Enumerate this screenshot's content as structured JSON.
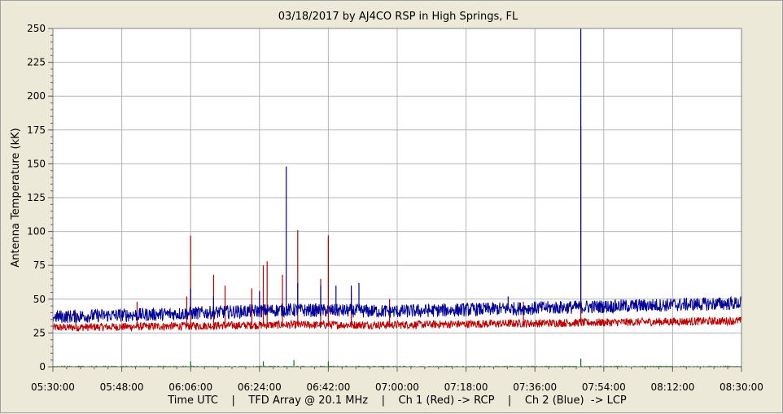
{
  "chart_data": {
    "type": "line",
    "title": "03/18/2017  by  AJ4CO RSP  in  High Springs, FL",
    "xlabel": "Time UTC    |    TFD Array @ 20.1 MHz    |    Ch 1 (Red) -> RCP    |    Ch 2 (Blue)  -> LCP",
    "ylabel": "Antenna Temperature (kK)",
    "x_tick_labels": [
      "05:30:00",
      "05:48:00",
      "06:06:00",
      "06:24:00",
      "06:42:00",
      "07:00:00",
      "07:18:00",
      "07:36:00",
      "07:54:00",
      "08:12:00",
      "08:30:00"
    ],
    "y_tick_labels": [
      "0",
      "25",
      "50",
      "75",
      "100",
      "125",
      "150",
      "175",
      "200",
      "225",
      "250"
    ],
    "xlim_minutes_utc": [
      330,
      510
    ],
    "ylim": [
      0,
      250
    ],
    "grid": true,
    "series": [
      {
        "name": "Ch 1 (Red) -> RCP",
        "color": "#c00000",
        "baseline": [
          [
            330,
            29
          ],
          [
            360,
            30
          ],
          [
            390,
            31
          ],
          [
            420,
            31
          ],
          [
            450,
            32
          ],
          [
            480,
            33
          ],
          [
            510,
            34
          ]
        ],
        "noise_amplitude": 3,
        "spikes": [
          [
            336,
            40
          ],
          [
            352,
            48
          ],
          [
            365,
            52
          ],
          [
            366,
            97
          ],
          [
            372,
            68
          ],
          [
            375,
            60
          ],
          [
            382,
            58
          ],
          [
            385,
            75
          ],
          [
            386,
            78
          ],
          [
            390,
            68
          ],
          [
            394,
            101
          ],
          [
            400,
            65
          ],
          [
            402,
            97
          ],
          [
            408,
            55
          ],
          [
            418,
            50
          ],
          [
            453,
            48
          ],
          [
            468,
            178
          ]
        ]
      },
      {
        "name": "Ch 2 (Blue) -> LCP",
        "color": "#000099",
        "baseline": [
          [
            330,
            37
          ],
          [
            360,
            39
          ],
          [
            390,
            42
          ],
          [
            420,
            41
          ],
          [
            450,
            43
          ],
          [
            480,
            45
          ],
          [
            510,
            47
          ]
        ],
        "noise_amplitude": 5,
        "spikes": [
          [
            366,
            58
          ],
          [
            372,
            52
          ],
          [
            384,
            56
          ],
          [
            391,
            148
          ],
          [
            394,
            62
          ],
          [
            400,
            60
          ],
          [
            404,
            60
          ],
          [
            408,
            60
          ],
          [
            410,
            62
          ],
          [
            449,
            52
          ],
          [
            468,
            250
          ]
        ]
      },
      {
        "name": "",
        "color": "#008000",
        "baseline": [
          [
            330,
            0
          ],
          [
            510,
            0
          ]
        ],
        "noise_amplitude": 0.5,
        "spikes": [
          [
            366,
            4
          ],
          [
            385,
            4
          ],
          [
            393,
            5
          ],
          [
            402,
            4
          ],
          [
            468,
            6
          ]
        ]
      }
    ]
  }
}
